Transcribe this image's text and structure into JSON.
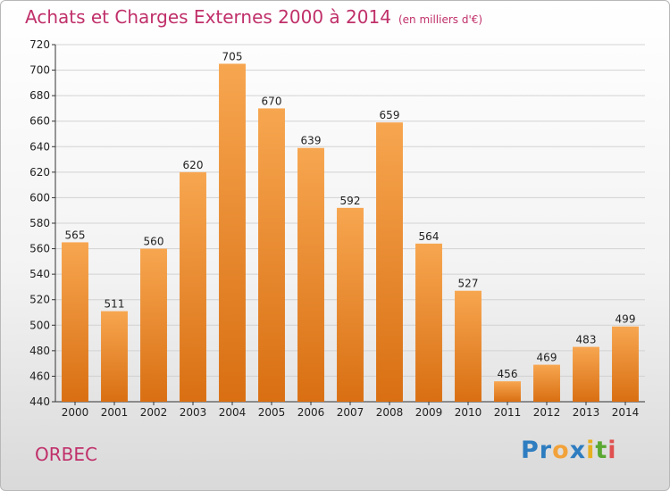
{
  "title": "Achats et Charges Externes 2000 à 2014",
  "subtitle": "(en milliers d'€)",
  "city": "ORBEC",
  "logo": {
    "letters": [
      "P",
      "r",
      "o",
      "x",
      "i",
      "t",
      "i"
    ],
    "colors": [
      "#2e7dc0",
      "#2e7dc0",
      "#f2a23a",
      "#2e7dc0",
      "#e8b020",
      "#5aa832",
      "#e05050"
    ]
  },
  "colors": {
    "bar_top": "#f7a650",
    "bar_bottom": "#d96f12",
    "title": "#c0306a",
    "grid": "#d2d2d2"
  },
  "chart_data": {
    "type": "bar",
    "title": "Achats et Charges Externes 2000 à 2014",
    "subtitle": "(en milliers d'€)",
    "categories": [
      "2000",
      "2001",
      "2002",
      "2003",
      "2004",
      "2005",
      "2006",
      "2007",
      "2008",
      "2009",
      "2010",
      "2011",
      "2012",
      "2013",
      "2014"
    ],
    "values": [
      565,
      511,
      560,
      620,
      705,
      670,
      639,
      592,
      659,
      564,
      527,
      456,
      469,
      483,
      499
    ],
    "ylim": [
      440,
      720
    ],
    "yticks": [
      440,
      460,
      480,
      500,
      520,
      540,
      560,
      580,
      600,
      620,
      640,
      660,
      680,
      700,
      720
    ],
    "grid": true,
    "xlabel": "",
    "ylabel": ""
  }
}
